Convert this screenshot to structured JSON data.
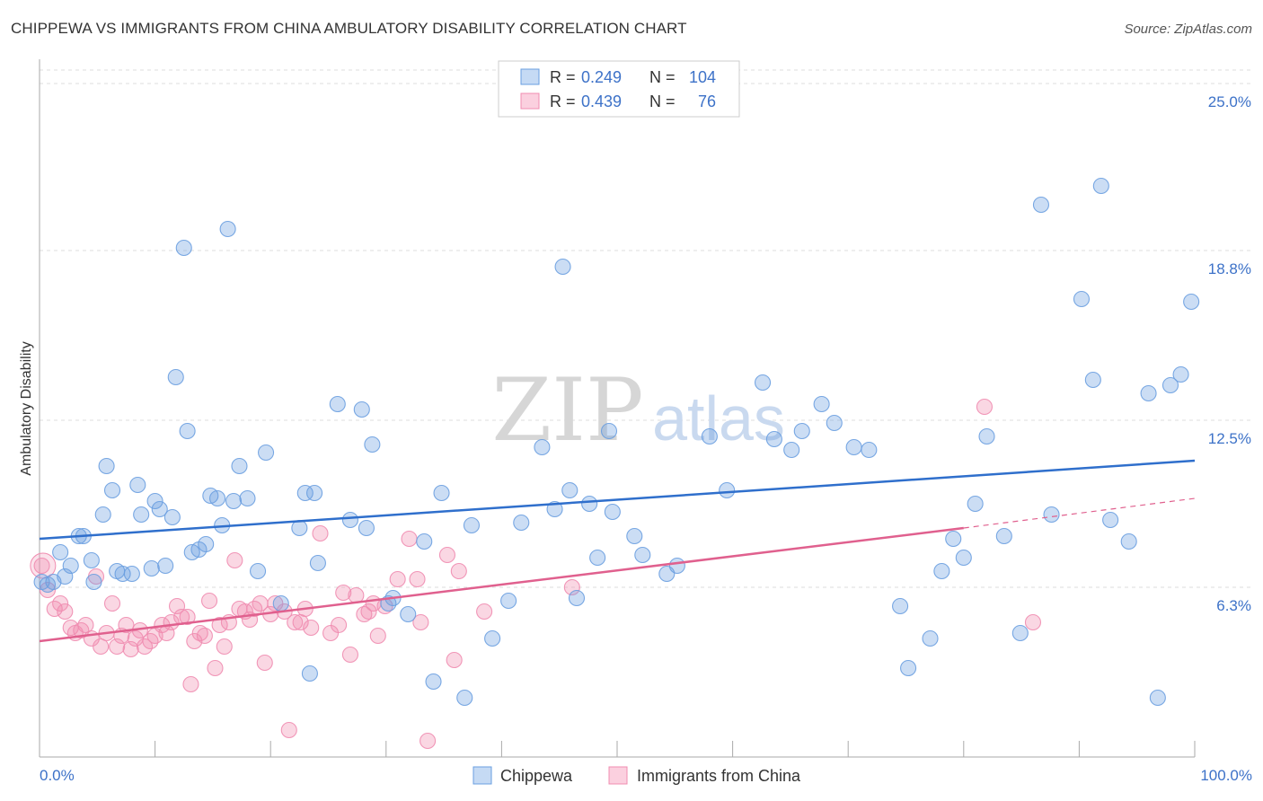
{
  "header": {
    "title": "CHIPPEWA VS IMMIGRANTS FROM CHINA AMBULATORY DISABILITY CORRELATION CHART",
    "source": "Source: ZipAtlas.com"
  },
  "watermark": {
    "zip": "ZIP",
    "atlas": "atlas"
  },
  "colors": {
    "chippewa": "#6a9fe0",
    "chippewa_line": "#2f6fcc",
    "china": "#f08cb0",
    "china_line": "#e0608e",
    "axis_label": "#3d72c8",
    "grid": "#dddddd"
  },
  "stats_legend": {
    "rows": [
      {
        "r_label": "R =",
        "r_value": "0.249",
        "n_label": "N =",
        "n_value": "104"
      },
      {
        "r_label": "R =",
        "r_value": "0.439",
        "n_label": "N =",
        "n_value": "76"
      }
    ]
  },
  "chart_data": {
    "type": "scatter",
    "title": "CHIPPEWA VS IMMIGRANTS FROM CHINA AMBULATORY DISABILITY CORRELATION CHART",
    "xlabel": "",
    "ylabel": "Ambulatory Disability",
    "xlim": [
      0,
      100
    ],
    "ylim": [
      0,
      25.5
    ],
    "x_tick_labels": [
      "0.0%",
      "100.0%"
    ],
    "y_ticks": [
      6.3,
      12.5,
      18.8,
      25.0
    ],
    "y_tick_labels": [
      "6.3%",
      "12.5%",
      "18.8%",
      "25.0%"
    ],
    "legend_position": "bottom-center",
    "series": [
      {
        "name": "Chippewa",
        "r": 0.249,
        "n": 104,
        "trend": {
          "x": [
            0,
            100
          ],
          "y": [
            8.1,
            11.0
          ]
        },
        "points": [
          [
            0.2,
            6.5
          ],
          [
            0.7,
            6.4
          ],
          [
            1.2,
            6.5
          ],
          [
            1.8,
            7.6
          ],
          [
            2.2,
            6.7
          ],
          [
            2.7,
            7.1
          ],
          [
            3.4,
            8.2
          ],
          [
            3.8,
            8.2
          ],
          [
            4.5,
            7.3
          ],
          [
            4.7,
            6.5
          ],
          [
            5.5,
            9.0
          ],
          [
            5.8,
            10.8
          ],
          [
            6.3,
            9.9
          ],
          [
            6.7,
            6.9
          ],
          [
            7.2,
            6.8
          ],
          [
            8.0,
            6.8
          ],
          [
            8.5,
            10.1
          ],
          [
            8.8,
            9.0
          ],
          [
            9.7,
            7.0
          ],
          [
            10.0,
            9.5
          ],
          [
            10.4,
            9.2
          ],
          [
            10.9,
            7.1
          ],
          [
            11.5,
            8.9
          ],
          [
            11.8,
            14.1
          ],
          [
            12.5,
            18.9
          ],
          [
            12.8,
            12.1
          ],
          [
            13.2,
            7.6
          ],
          [
            13.8,
            7.7
          ],
          [
            14.4,
            7.9
          ],
          [
            14.8,
            9.7
          ],
          [
            15.4,
            9.6
          ],
          [
            15.8,
            8.6
          ],
          [
            16.3,
            19.6
          ],
          [
            16.8,
            9.5
          ],
          [
            17.3,
            10.8
          ],
          [
            18.0,
            9.6
          ],
          [
            18.9,
            6.9
          ],
          [
            19.6,
            11.3
          ],
          [
            20.9,
            5.7
          ],
          [
            22.5,
            8.5
          ],
          [
            23.0,
            9.8
          ],
          [
            23.4,
            3.1
          ],
          [
            23.8,
            9.8
          ],
          [
            24.1,
            7.2
          ],
          [
            25.8,
            13.1
          ],
          [
            26.9,
            8.8
          ],
          [
            27.9,
            12.9
          ],
          [
            28.3,
            8.5
          ],
          [
            28.8,
            11.6
          ],
          [
            30.2,
            5.7
          ],
          [
            30.6,
            5.9
          ],
          [
            31.9,
            5.3
          ],
          [
            33.3,
            8.0
          ],
          [
            34.1,
            2.8
          ],
          [
            34.8,
            9.8
          ],
          [
            36.8,
            2.2
          ],
          [
            37.4,
            8.6
          ],
          [
            39.2,
            4.4
          ],
          [
            40.6,
            5.8
          ],
          [
            41.7,
            8.7
          ],
          [
            43.5,
            11.5
          ],
          [
            44.6,
            9.2
          ],
          [
            45.3,
            18.2
          ],
          [
            45.9,
            9.9
          ],
          [
            46.5,
            5.9
          ],
          [
            47.6,
            9.4
          ],
          [
            48.3,
            7.4
          ],
          [
            49.3,
            12.1
          ],
          [
            49.6,
            9.1
          ],
          [
            51.5,
            8.2
          ],
          [
            52.2,
            7.5
          ],
          [
            54.3,
            6.8
          ],
          [
            55.2,
            7.1
          ],
          [
            58.0,
            11.9
          ],
          [
            59.5,
            9.9
          ],
          [
            62.6,
            13.9
          ],
          [
            63.6,
            11.8
          ],
          [
            65.1,
            11.4
          ],
          [
            66.0,
            12.1
          ],
          [
            67.7,
            13.1
          ],
          [
            68.8,
            12.4
          ],
          [
            70.5,
            11.5
          ],
          [
            71.8,
            11.4
          ],
          [
            74.5,
            5.6
          ],
          [
            75.2,
            3.3
          ],
          [
            77.1,
            4.4
          ],
          [
            78.1,
            6.9
          ],
          [
            79.1,
            8.1
          ],
          [
            80.0,
            7.4
          ],
          [
            81.0,
            9.4
          ],
          [
            82.0,
            11.9
          ],
          [
            83.5,
            8.2
          ],
          [
            84.9,
            4.6
          ],
          [
            86.7,
            20.5
          ],
          [
            87.6,
            9.0
          ],
          [
            90.2,
            17.0
          ],
          [
            91.2,
            14.0
          ],
          [
            91.9,
            21.2
          ],
          [
            92.7,
            8.8
          ],
          [
            94.3,
            8.0
          ],
          [
            96.0,
            13.5
          ],
          [
            96.8,
            2.2
          ],
          [
            97.9,
            13.8
          ],
          [
            98.8,
            14.2
          ],
          [
            99.7,
            16.9
          ]
        ]
      },
      {
        "name": "Immigrants from China",
        "r": 0.439,
        "n": 76,
        "trend": {
          "x": [
            0,
            80
          ],
          "y": [
            4.3,
            8.5
          ]
        },
        "trend_dashed": {
          "x": [
            80,
            100
          ],
          "y": [
            8.5,
            9.6
          ]
        },
        "points": [
          [
            0.2,
            7.1
          ],
          [
            0.7,
            6.2
          ],
          [
            1.3,
            5.5
          ],
          [
            1.8,
            5.7
          ],
          [
            2.2,
            5.4
          ],
          [
            2.7,
            4.8
          ],
          [
            3.1,
            4.6
          ],
          [
            3.6,
            4.7
          ],
          [
            4.0,
            4.9
          ],
          [
            4.5,
            4.4
          ],
          [
            4.9,
            6.7
          ],
          [
            5.3,
            4.1
          ],
          [
            5.8,
            4.6
          ],
          [
            6.3,
            5.7
          ],
          [
            6.7,
            4.1
          ],
          [
            7.1,
            4.5
          ],
          [
            7.5,
            4.9
          ],
          [
            7.9,
            4.0
          ],
          [
            8.3,
            4.4
          ],
          [
            8.7,
            4.7
          ],
          [
            9.1,
            4.1
          ],
          [
            9.6,
            4.3
          ],
          [
            10.0,
            4.5
          ],
          [
            10.6,
            4.9
          ],
          [
            11.0,
            4.6
          ],
          [
            11.4,
            5.0
          ],
          [
            11.9,
            5.6
          ],
          [
            12.3,
            5.2
          ],
          [
            12.8,
            5.2
          ],
          [
            13.1,
            2.7
          ],
          [
            13.4,
            4.3
          ],
          [
            13.9,
            4.6
          ],
          [
            14.3,
            4.5
          ],
          [
            14.7,
            5.8
          ],
          [
            15.2,
            3.3
          ],
          [
            15.6,
            4.9
          ],
          [
            16.0,
            4.1
          ],
          [
            16.4,
            5.0
          ],
          [
            16.9,
            7.3
          ],
          [
            17.3,
            5.5
          ],
          [
            17.8,
            5.4
          ],
          [
            18.2,
            5.1
          ],
          [
            18.6,
            5.5
          ],
          [
            19.1,
            5.7
          ],
          [
            19.5,
            3.5
          ],
          [
            20.0,
            5.3
          ],
          [
            20.4,
            5.7
          ],
          [
            21.2,
            5.4
          ],
          [
            21.6,
            1.0
          ],
          [
            22.1,
            5.0
          ],
          [
            22.6,
            5.0
          ],
          [
            23.0,
            5.5
          ],
          [
            23.5,
            4.8
          ],
          [
            24.3,
            8.3
          ],
          [
            25.2,
            4.6
          ],
          [
            25.9,
            4.9
          ],
          [
            26.3,
            6.1
          ],
          [
            26.9,
            3.8
          ],
          [
            27.4,
            6.0
          ],
          [
            28.1,
            5.3
          ],
          [
            28.5,
            5.4
          ],
          [
            28.9,
            5.7
          ],
          [
            29.3,
            4.5
          ],
          [
            29.9,
            5.6
          ],
          [
            31.0,
            6.6
          ],
          [
            32.0,
            8.1
          ],
          [
            32.7,
            6.6
          ],
          [
            33.0,
            5.0
          ],
          [
            33.6,
            0.6
          ],
          [
            35.3,
            7.5
          ],
          [
            35.9,
            3.6
          ],
          [
            36.3,
            6.9
          ],
          [
            38.5,
            5.4
          ],
          [
            46.1,
            6.3
          ],
          [
            81.8,
            13.0
          ],
          [
            86.0,
            5.0
          ]
        ]
      }
    ]
  },
  "legend": {
    "items": [
      {
        "label": "Chippewa"
      },
      {
        "label": "Immigrants from China"
      }
    ]
  }
}
